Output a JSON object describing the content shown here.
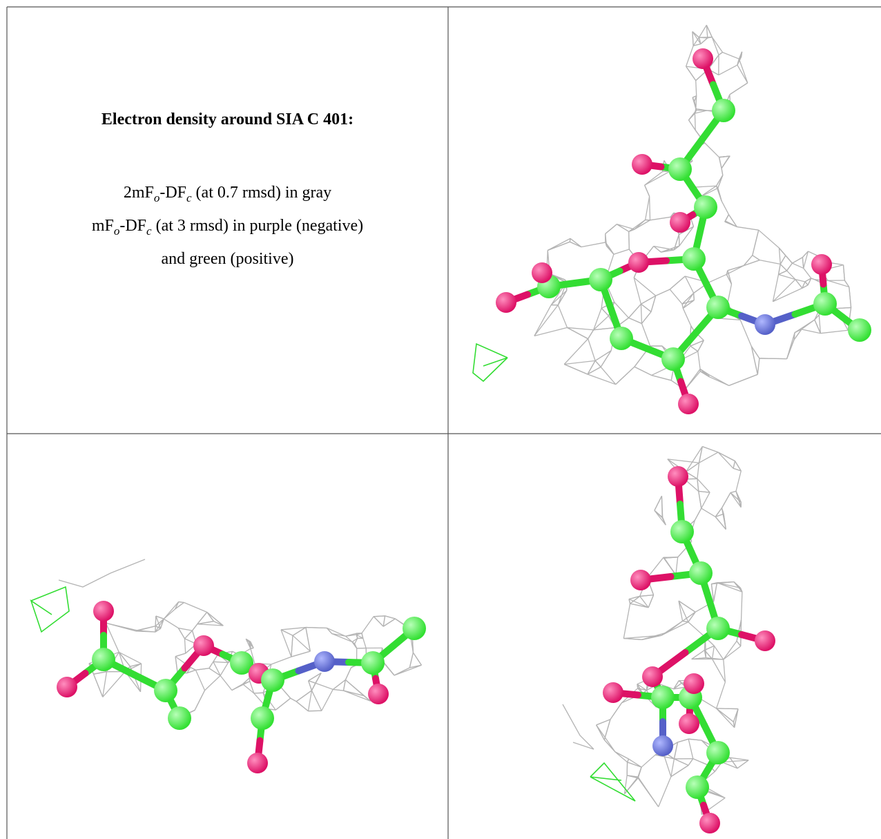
{
  "caption": {
    "title": "Electron density around SIA C 401:",
    "lines": [
      [
        "2mF",
        "o",
        "-DF",
        "c",
        " (at 0.7 rmsd) in gray"
      ],
      [
        "mF",
        "o",
        "-DF",
        "c",
        " (at 3 rmsd) in purple (negative)"
      ],
      [
        "and green (positive)"
      ]
    ]
  }
}
